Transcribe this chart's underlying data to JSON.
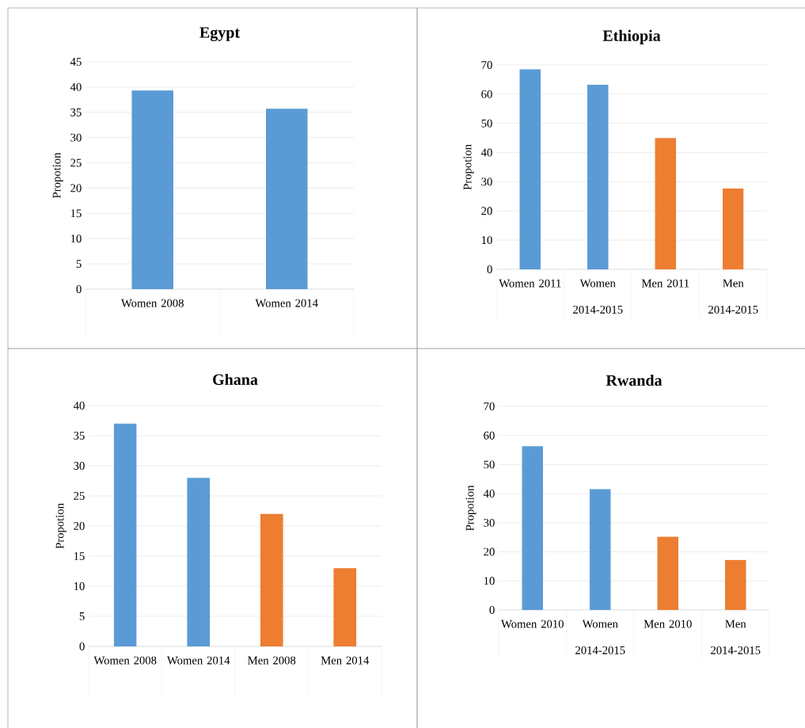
{
  "chart_data": [
    {
      "type": "bar",
      "title": "Egypt",
      "ylabel": "Propotion",
      "categories": [
        "Women 2008",
        "Women 2014"
      ],
      "values": [
        39.3,
        35.7
      ],
      "colors": [
        "#5b9bd5",
        "#5b9bd5"
      ],
      "ylim": [
        0,
        45
      ],
      "yticks": [
        0,
        5,
        10,
        15,
        20,
        25,
        30,
        35,
        40,
        45
      ],
      "grid": "y"
    },
    {
      "type": "bar",
      "title": "Ethiopia",
      "ylabel": "Propotion",
      "categories": [
        "Women 2011",
        "Women 2014-2015",
        "Men 2011",
        "Men 2014-2015"
      ],
      "values": [
        68.5,
        63.2,
        45,
        27.7
      ],
      "colors": [
        "#5b9bd5",
        "#5b9bd5",
        "#ed7d31",
        "#ed7d31"
      ],
      "ylim": [
        0,
        70
      ],
      "yticks": [
        0,
        10,
        20,
        30,
        40,
        50,
        60,
        70
      ],
      "grid": "y"
    },
    {
      "type": "bar",
      "title": "Ghana",
      "ylabel": "Propotion",
      "categories": [
        "Women 2008",
        "Women 2014",
        "Men 2008",
        "Men 2014"
      ],
      "values": [
        37,
        28,
        22,
        13
      ],
      "colors": [
        "#5b9bd5",
        "#5b9bd5",
        "#ed7d31",
        "#ed7d31"
      ],
      "ylim": [
        0,
        40
      ],
      "yticks": [
        0,
        5,
        10,
        15,
        20,
        25,
        30,
        35,
        40
      ],
      "grid": "y"
    },
    {
      "type": "bar",
      "title": "Rwanda",
      "ylabel": "Propotion",
      "categories": [
        "Women 2010",
        "Women 2014-2015",
        "Men 2010",
        "Men 2014-2015"
      ],
      "values": [
        56.3,
        41.5,
        25.2,
        17.2
      ],
      "colors": [
        "#5b9bd5",
        "#5b9bd5",
        "#ed7d31",
        "#ed7d31"
      ],
      "ylim": [
        0,
        70
      ],
      "yticks": [
        0,
        10,
        20,
        30,
        40,
        50,
        60,
        70
      ],
      "grid": "y"
    }
  ]
}
